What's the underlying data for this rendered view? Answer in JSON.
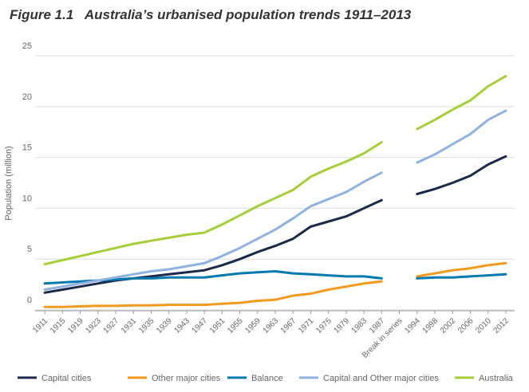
{
  "chart_data": {
    "type": "line",
    "title": "Figure 1.1   Australia’s urbanised population trends 1911–2013",
    "y_label": "Population (million)",
    "categories": [
      "1911",
      "1915",
      "1919",
      "1923",
      "1927",
      "1931",
      "1935",
      "1939",
      "1943",
      "1947",
      "1951",
      "1955",
      "1959",
      "1963",
      "1967",
      "1971",
      "1975",
      "1979",
      "1983",
      "1987",
      "Break in series",
      "1994",
      "1998",
      "2002",
      "2006",
      "2010",
      "2012"
    ],
    "series": [
      {
        "name": "Capital cities",
        "color": "#1b2a4a",
        "values": [
          1.7,
          2.0,
          2.3,
          2.6,
          2.9,
          3.1,
          3.3,
          3.5,
          3.7,
          3.9,
          4.4,
          5.0,
          5.7,
          6.3,
          7.0,
          8.2,
          8.7,
          9.2,
          10.0,
          10.8,
          null,
          11.4,
          11.9,
          12.5,
          13.2,
          14.3,
          15.1
        ]
      },
      {
        "name": "Other major cities",
        "color": "#f39a1e",
        "values": [
          0.3,
          0.3,
          0.35,
          0.4,
          0.4,
          0.45,
          0.45,
          0.5,
          0.5,
          0.5,
          0.6,
          0.7,
          0.9,
          1.0,
          1.4,
          1.6,
          2.0,
          2.3,
          2.6,
          2.8,
          null,
          3.3,
          3.6,
          3.9,
          4.1,
          4.4,
          4.6
        ]
      },
      {
        "name": "Balance",
        "color": "#0079b1",
        "values": [
          2.6,
          2.7,
          2.8,
          2.9,
          3.0,
          3.1,
          3.1,
          3.2,
          3.2,
          3.2,
          3.4,
          3.6,
          3.7,
          3.8,
          3.6,
          3.5,
          3.4,
          3.3,
          3.3,
          3.1,
          null,
          3.1,
          3.2,
          3.2,
          3.3,
          3.4,
          3.5
        ]
      },
      {
        "name": "Capital and Other major cities",
        "color": "#8fb2e0",
        "values": [
          2.0,
          2.3,
          2.6,
          2.9,
          3.2,
          3.5,
          3.8,
          4.0,
          4.3,
          4.6,
          5.3,
          6.1,
          7.0,
          7.9,
          9.0,
          10.2,
          10.9,
          11.6,
          12.6,
          13.5,
          null,
          14.5,
          15.3,
          16.3,
          17.3,
          18.7,
          19.6
        ]
      },
      {
        "name": "Australia",
        "color": "#a6ce39",
        "values": [
          4.5,
          4.9,
          5.3,
          5.7,
          6.1,
          6.5,
          6.8,
          7.1,
          7.4,
          7.6,
          8.4,
          9.3,
          10.2,
          11.0,
          11.8,
          13.1,
          13.9,
          14.6,
          15.4,
          16.5,
          null,
          17.8,
          18.7,
          19.7,
          20.6,
          22.0,
          23.0
        ]
      }
    ],
    "ylim": [
      0,
      25
    ],
    "yticks": [
      0,
      5,
      10,
      15,
      20,
      25
    ],
    "grid": true,
    "legend": "bottom"
  }
}
